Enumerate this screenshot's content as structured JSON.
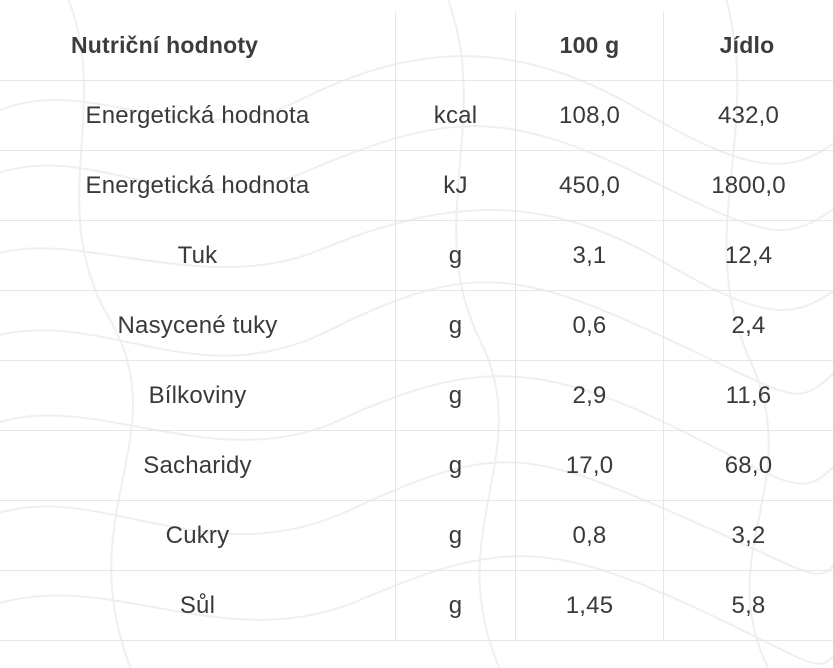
{
  "table": {
    "headers": [
      "Nutriční hodnoty",
      "",
      "100 g",
      "Jídlo"
    ],
    "rows": [
      [
        "Energetická hodnota",
        "kcal",
        "108,0",
        "432,0"
      ],
      [
        "Energetická hodnota",
        "kJ",
        "450,0",
        "1800,0"
      ],
      [
        "Tuk",
        "g",
        "3,1",
        "12,4"
      ],
      [
        "Nasycené tuky",
        "g",
        "0,6",
        "2,4"
      ],
      [
        "Bílkoviny",
        "g",
        "2,9",
        "11,6"
      ],
      [
        "Sacharidy",
        "g",
        "17,0",
        "68,0"
      ],
      [
        "Cukry",
        "g",
        "0,8",
        "3,2"
      ],
      [
        "Sůl",
        "g",
        "1,45",
        "5,8"
      ]
    ]
  },
  "colors": {
    "text": "#3a3a3a",
    "grid": "#e6e6e6",
    "background": "#ffffff",
    "pattern": "#efefef"
  }
}
